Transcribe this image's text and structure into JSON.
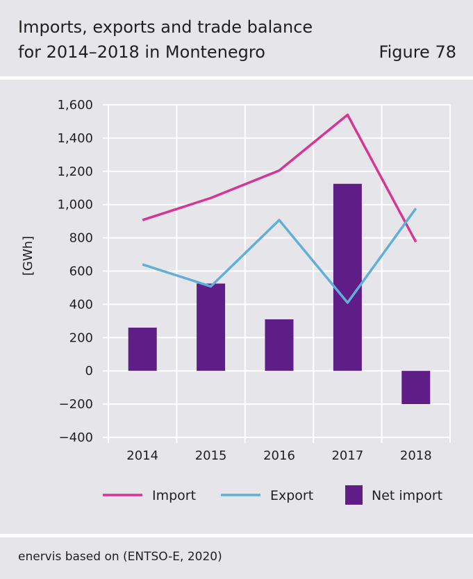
{
  "header": {
    "title_line1": "Imports, exports and trade balance",
    "title_line2": "for 2014–2018 in Montenegro",
    "figure_label": "Figure 78"
  },
  "source": "enervis based on (ENTSO-E, 2020)",
  "chart_data": {
    "type": "bar",
    "categories": [
      "2014",
      "2015",
      "2016",
      "2017",
      "2018"
    ],
    "ylabel": "[GWh]",
    "ylim": [
      -400,
      1600
    ],
    "yticks": [
      -400,
      -200,
      0,
      200,
      400,
      600,
      800,
      1000,
      1200,
      1400,
      1600
    ],
    "ytick_labels": [
      "−400",
      "−200",
      "0",
      "200",
      "400",
      "600",
      "800",
      "1,000",
      "1,200",
      "1,400",
      "1,600"
    ],
    "grid": true,
    "legend_position": "bottom",
    "series": [
      {
        "name": "Import",
        "kind": "line",
        "color": "#d63594",
        "values": [
          907,
          1040,
          1205,
          1540,
          775
        ]
      },
      {
        "name": "Export",
        "kind": "line",
        "color": "#5fafd6",
        "values": [
          640,
          508,
          907,
          410,
          977
        ]
      },
      {
        "name": "Net import",
        "kind": "bar",
        "color": "#5f1e87",
        "values": [
          260,
          525,
          310,
          1125,
          -200
        ]
      }
    ]
  }
}
